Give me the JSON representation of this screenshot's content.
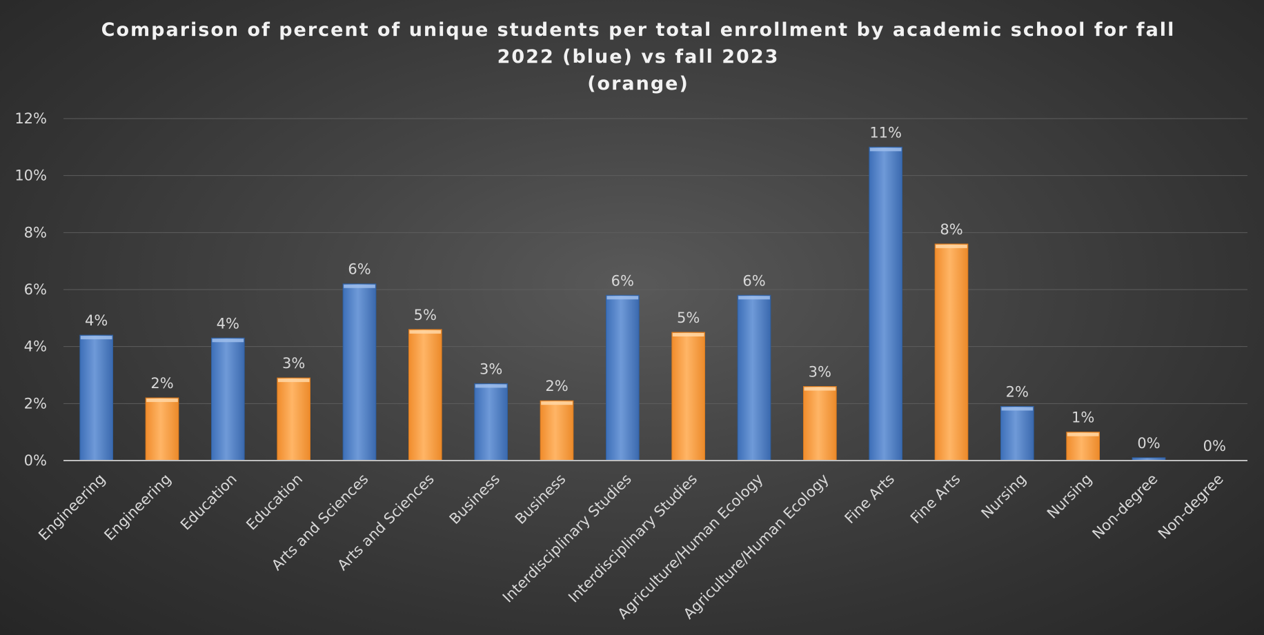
{
  "chart_data": {
    "type": "bar",
    "title": [
      "Comparison of percent of unique students per total enrollment by academic school for fall",
      "2022 (blue) vs fall 2023",
      "(orange)"
    ],
    "xlabel": "",
    "ylabel": "",
    "ylim": [
      0,
      12
    ],
    "yticks": [
      "0%",
      "2%",
      "4%",
      "6%",
      "8%",
      "10%",
      "12%"
    ],
    "grid": true,
    "legend": "none",
    "colors": {
      "fall_2022": "#4a7cc4",
      "fall_2023": "#f79a3e"
    },
    "bars": [
      {
        "category": "Engineering",
        "series": "fall_2022",
        "value": 4.4,
        "label": "4%"
      },
      {
        "category": "Engineering",
        "series": "fall_2023",
        "value": 2.2,
        "label": "2%"
      },
      {
        "category": "Education",
        "series": "fall_2022",
        "value": 4.3,
        "label": "4%"
      },
      {
        "category": "Education",
        "series": "fall_2023",
        "value": 2.9,
        "label": "3%"
      },
      {
        "category": "Arts and Sciences",
        "series": "fall_2022",
        "value": 6.2,
        "label": "6%"
      },
      {
        "category": "Arts and Sciences",
        "series": "fall_2023",
        "value": 4.6,
        "label": "5%"
      },
      {
        "category": "Business",
        "series": "fall_2022",
        "value": 2.7,
        "label": "3%"
      },
      {
        "category": "Business",
        "series": "fall_2023",
        "value": 2.1,
        "label": "2%"
      },
      {
        "category": "Interdisciplinary Studies",
        "series": "fall_2022",
        "value": 5.8,
        "label": "6%"
      },
      {
        "category": "Interdisciplinary Studies",
        "series": "fall_2023",
        "value": 4.5,
        "label": "5%"
      },
      {
        "category": "Agriculture/Human Ecology",
        "series": "fall_2022",
        "value": 5.8,
        "label": "6%"
      },
      {
        "category": "Agriculture/Human Ecology",
        "series": "fall_2023",
        "value": 2.6,
        "label": "3%"
      },
      {
        "category": "Fine Arts",
        "series": "fall_2022",
        "value": 11.0,
        "label": "11%"
      },
      {
        "category": "Fine Arts",
        "series": "fall_2023",
        "value": 7.6,
        "label": "8%"
      },
      {
        "category": "Nursing",
        "series": "fall_2022",
        "value": 1.9,
        "label": "2%"
      },
      {
        "category": "Nursing",
        "series": "fall_2023",
        "value": 1.0,
        "label": "1%"
      },
      {
        "category": "Non-degree",
        "series": "fall_2022",
        "value": 0.1,
        "label": "0%"
      },
      {
        "category": "Non-degree",
        "series": "fall_2023",
        "value": 0.0,
        "label": "0%"
      }
    ]
  }
}
